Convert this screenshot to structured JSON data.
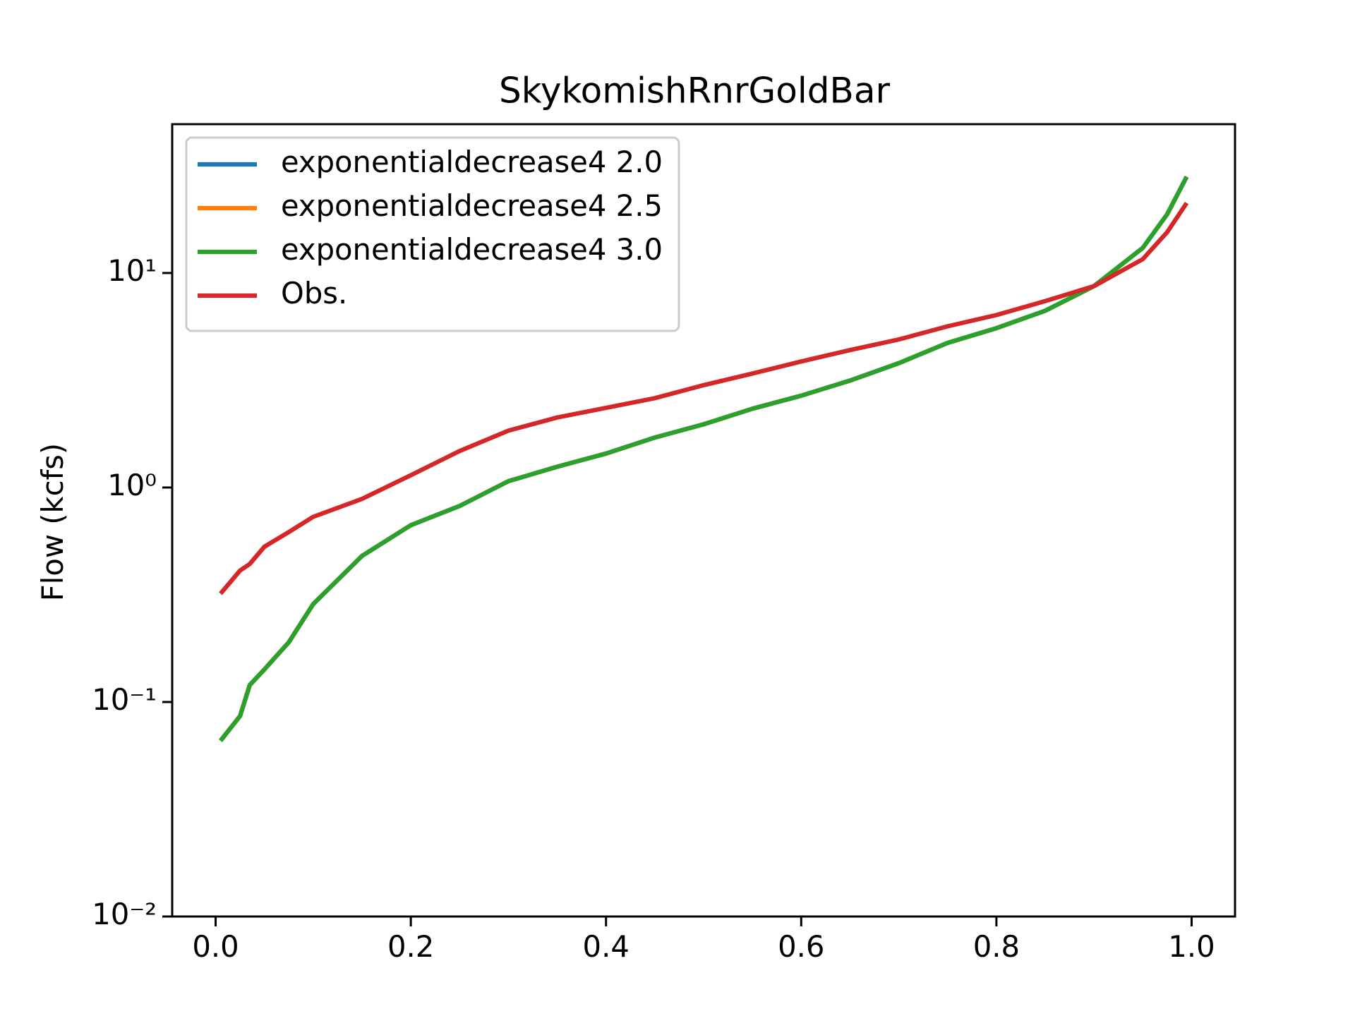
{
  "chart_data": {
    "type": "line",
    "title": "SkykomishRnrGoldBar",
    "y_label": "Flow (kcfs)",
    "y_scale": "log",
    "legend": "upper left",
    "x": [
      0.005,
      0.025,
      0.035,
      0.05,
      0.075,
      0.1,
      0.15,
      0.2,
      0.25,
      0.3,
      0.35,
      0.4,
      0.45,
      0.5,
      0.55,
      0.6,
      0.65,
      0.7,
      0.75,
      0.8,
      0.85,
      0.9,
      0.95,
      0.975,
      0.995
    ],
    "series": [
      {
        "name": "exponentialdecrease4 2.0",
        "color": "#1f77b4",
        "values": [
          0.066,
          0.086,
          0.12,
          0.142,
          0.19,
          0.286,
          0.48,
          0.667,
          0.82,
          1.07,
          1.25,
          1.44,
          1.71,
          1.97,
          2.33,
          2.68,
          3.15,
          3.8,
          4.72,
          5.53,
          6.67,
          8.69,
          13.1,
          18.8,
          28.1
        ]
      },
      {
        "name": "exponentialdecrease4 2.5",
        "color": "#ff7f0e",
        "values": [
          0.066,
          0.086,
          0.12,
          0.142,
          0.19,
          0.286,
          0.48,
          0.667,
          0.82,
          1.07,
          1.25,
          1.44,
          1.71,
          1.97,
          2.33,
          2.68,
          3.15,
          3.8,
          4.72,
          5.53,
          6.67,
          8.69,
          13.1,
          18.8,
          28.1
        ]
      },
      {
        "name": "exponentialdecrease4 3.0",
        "color": "#2ca02c",
        "values": [
          0.066,
          0.086,
          0.12,
          0.142,
          0.19,
          0.286,
          0.48,
          0.667,
          0.82,
          1.07,
          1.25,
          1.44,
          1.71,
          1.97,
          2.33,
          2.68,
          3.15,
          3.8,
          4.72,
          5.53,
          6.67,
          8.69,
          13.1,
          18.8,
          28.1
        ]
      },
      {
        "name": "Obs.",
        "color": "#d62728",
        "values": [
          0.32,
          0.41,
          0.44,
          0.53,
          0.62,
          0.73,
          0.885,
          1.14,
          1.48,
          1.84,
          2.12,
          2.35,
          2.61,
          3.0,
          3.4,
          3.87,
          4.37,
          4.9,
          5.64,
          6.37,
          7.4,
          8.69,
          11.6,
          15.5,
          21.2
        ]
      }
    ],
    "xlim": [
      -0.0445,
      1.0445
    ],
    "ylim": [
      0.01,
      49.4
    ],
    "xticks": [
      {
        "value": 0,
        "label": "0.0"
      },
      0.2,
      0.4,
      0.6,
      0.8,
      {
        "value": 1,
        "label": "1.0"
      }
    ],
    "yticks": [
      {
        "value": 0.01,
        "label": "10⁻²"
      },
      {
        "value": 0.1,
        "label": "10⁻¹"
      },
      {
        "value": 1,
        "label": "10⁰"
      },
      {
        "value": 10,
        "label": "10¹"
      }
    ]
  }
}
